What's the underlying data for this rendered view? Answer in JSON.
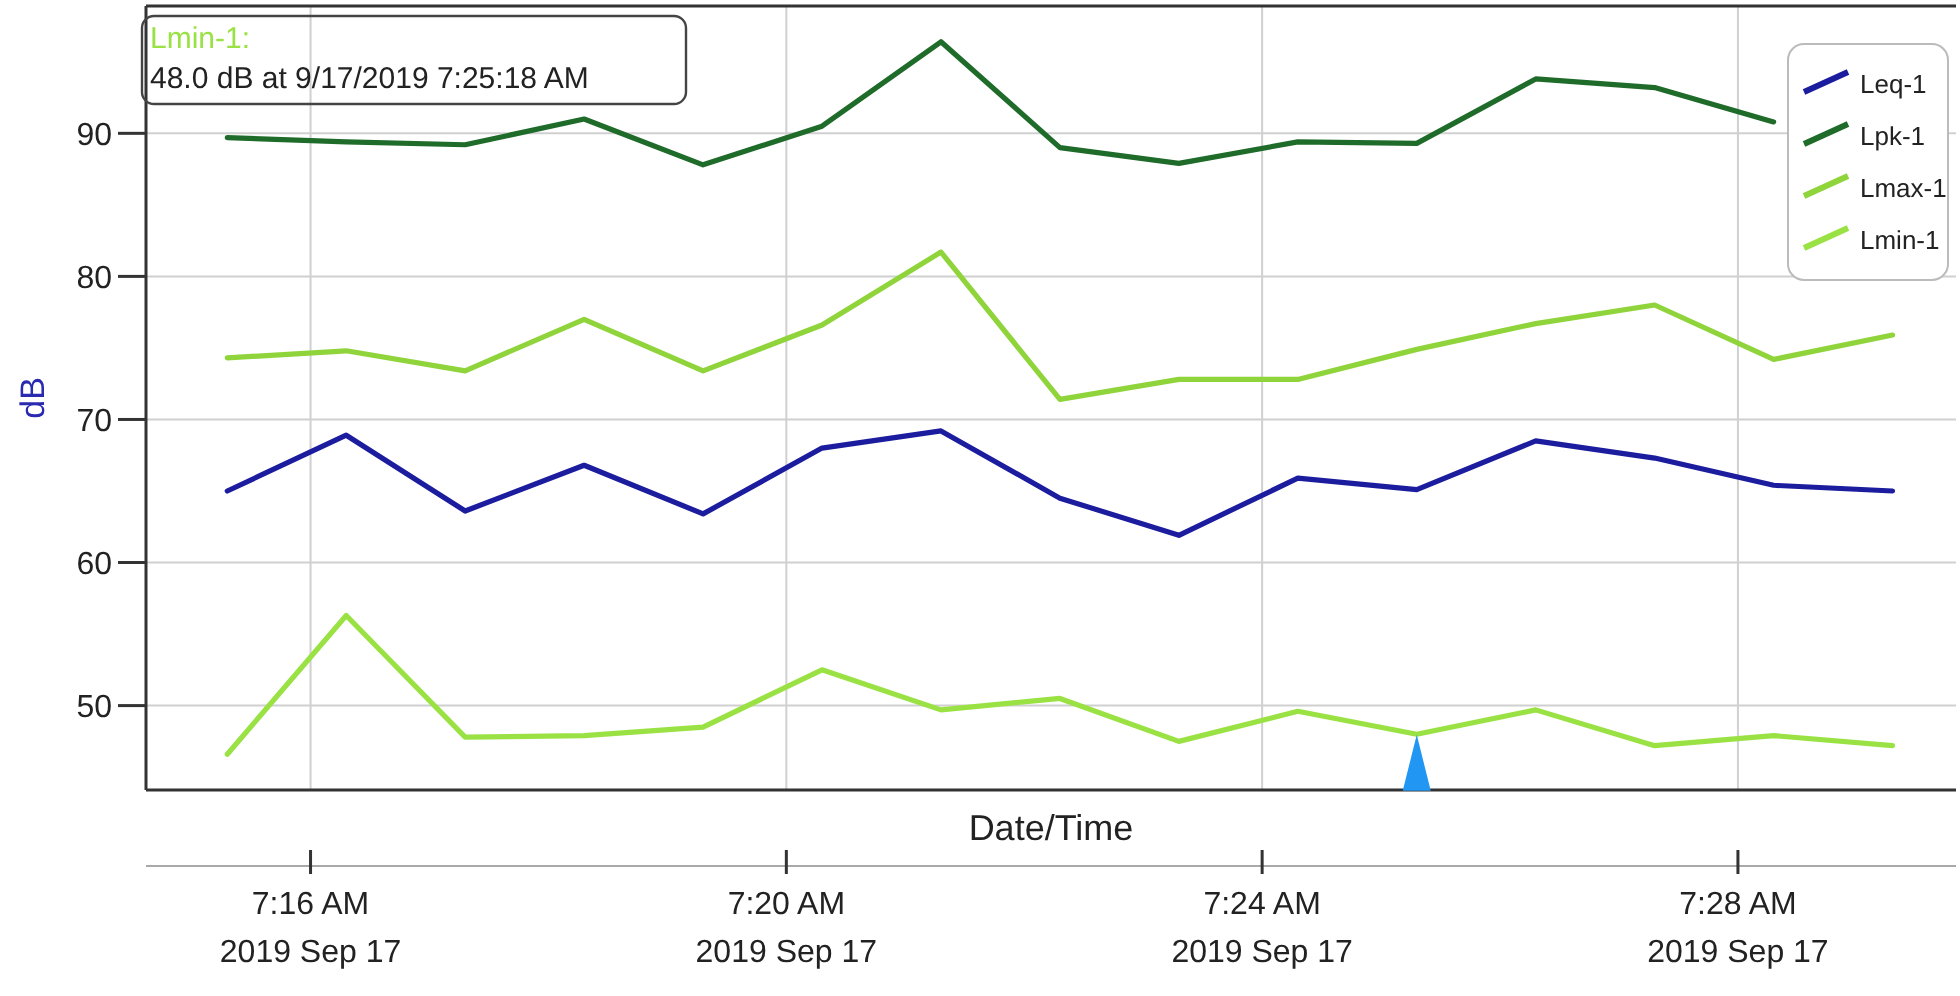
{
  "chart_data": {
    "type": "line",
    "xlabel": "Date/Time",
    "ylabel": "dB",
    "x": [
      "2019-09-17T07:15:18",
      "2019-09-17T07:16:18",
      "2019-09-17T07:17:18",
      "2019-09-17T07:18:18",
      "2019-09-17T07:19:18",
      "2019-09-17T07:20:18",
      "2019-09-17T07:21:18",
      "2019-09-17T07:22:18",
      "2019-09-17T07:23:18",
      "2019-09-17T07:24:18",
      "2019-09-17T07:25:18",
      "2019-09-17T07:26:18",
      "2019-09-17T07:27:18",
      "2019-09-17T07:28:18",
      "2019-09-17T07:29:18"
    ],
    "series": [
      {
        "name": "Leq-1",
        "color": "#1c1c9e",
        "values": [
          65.0,
          68.9,
          63.6,
          66.8,
          63.4,
          68.0,
          69.2,
          64.5,
          61.9,
          65.9,
          65.1,
          68.5,
          67.3,
          65.4,
          65.0
        ]
      },
      {
        "name": "Lpk-1",
        "color": "#1f6b2a",
        "values": [
          89.7,
          89.4,
          89.2,
          91.0,
          87.8,
          90.5,
          96.4,
          89.0,
          87.9,
          89.4,
          89.3,
          93.8,
          93.2,
          90.8,
          null
        ]
      },
      {
        "name": "Lmax-1",
        "color": "#8fd43a",
        "values": [
          74.3,
          74.8,
          73.4,
          77.0,
          73.4,
          76.6,
          81.7,
          71.4,
          72.8,
          72.8,
          74.9,
          76.7,
          78.0,
          74.2,
          75.9
        ]
      },
      {
        "name": "Lmin-1",
        "color": "#9ae244",
        "values": [
          46.6,
          56.3,
          47.8,
          47.9,
          48.5,
          52.5,
          49.7,
          50.5,
          47.5,
          49.6,
          48.0,
          49.7,
          47.2,
          47.9,
          47.2
        ]
      },
      {
        "type": "scatter",
        "marker": "triangle",
        "color": "#2196f3",
        "x": [
          "2019-09-17T07:25:18"
        ],
        "values": [
          46.0
        ]
      }
    ],
    "xlim": [
      "2019-09-17T07:14:37",
      "2019-09-17T07:29:50"
    ],
    "xticks": [
      {
        "value": "2019-09-17T07:16",
        "label": "7:16 AM\n2019 Sep 17"
      },
      {
        "value": "2019-09-17T07:20",
        "label": "7:20 AM\n2019 Sep 17"
      },
      {
        "value": "2019-09-17T07:24",
        "label": "7:24 AM\n2019 Sep 17"
      },
      {
        "value": "2019-09-17T07:28",
        "label": "7:28 AM\n2019 Sep 17"
      }
    ],
    "ylim": [
      44.1,
      98.9
    ],
    "yticks": [
      50,
      60,
      70,
      80,
      90
    ],
    "grid": true,
    "legend": "top right",
    "line_style": "solid",
    "marker": "none",
    "annotations": [
      "Lmin-1:\n48.0 dB at 9/17/2019 7:25:18 AM"
    ]
  }
}
